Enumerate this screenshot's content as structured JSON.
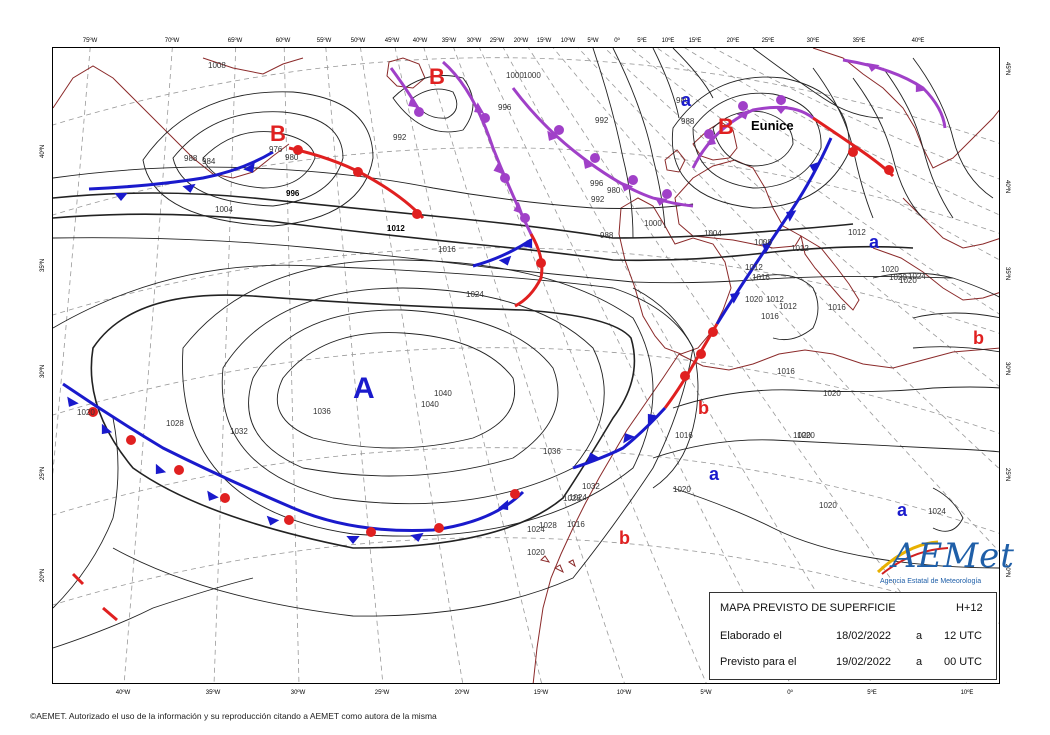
{
  "longitude_labels_top": [
    "75ºW",
    "70ºW",
    "65ºW",
    "60ºW",
    "55ºW",
    "50ºW",
    "45ºW",
    "40ºW",
    "35ºW",
    "30ºW",
    "25ºW",
    "20ºW",
    "15ºW",
    "10ºW",
    "5ºW",
    "0º",
    "5ºE",
    "10ºE",
    "15ºE",
    "20ºE",
    "25ºE",
    "30ºE",
    "35ºE",
    "40ºE"
  ],
  "longitude_labels_bottom": [
    "40ºW",
    "35ºW",
    "30ºW",
    "25ºW",
    "20ºW",
    "15ºW",
    "10ºW",
    "5ºW",
    "0º",
    "5ºE",
    "10ºE"
  ],
  "latitude_labels_left": [
    "40ºN",
    "35ºN",
    "30ºN",
    "25ºN",
    "20ºN"
  ],
  "latitude_labels_right": [
    "45ºN",
    "40ºN",
    "35ºN",
    "30ºN",
    "25ºN",
    "20ºN"
  ],
  "pressure_centers": [
    {
      "letter": "A",
      "color": "#1a1acc",
      "size": "big"
    },
    {
      "letter": "B",
      "color": "#e02020",
      "size": "big"
    },
    {
      "letter": "B",
      "color": "#e02020",
      "size": "big"
    },
    {
      "letter": "B",
      "color": "#e02020",
      "size": "big"
    },
    {
      "letter": "a",
      "color": "#1a1acc",
      "size": "small"
    },
    {
      "letter": "a",
      "color": "#1a1acc",
      "size": "small"
    },
    {
      "letter": "a",
      "color": "#1a1acc",
      "size": "small"
    },
    {
      "letter": "a",
      "color": "#1a1acc",
      "size": "small"
    },
    {
      "letter": "b",
      "color": "#e02020",
      "size": "small"
    },
    {
      "letter": "b",
      "color": "#e02020",
      "size": "small"
    },
    {
      "letter": "b",
      "color": "#e02020",
      "size": "small"
    }
  ],
  "storm_name": "Eunice",
  "isobar_labels": [
    "1008",
    "1000",
    "992",
    "988",
    "984",
    "976",
    "980",
    "996",
    "1004",
    "1012",
    "1016",
    "1024",
    "1020",
    "1028",
    "1032",
    "1036",
    "1040",
    "1040",
    "1036",
    "1032",
    "1028",
    "1024",
    "1020",
    "980",
    "988",
    "1000",
    "996",
    "992",
    "980",
    "988",
    "996",
    "992",
    "1000",
    "1004",
    "1008",
    "1012",
    "1016",
    "1020",
    "1012",
    "1012",
    "1016",
    "1012",
    "1020",
    "1020",
    "1016",
    "1016",
    "1020",
    "1020",
    "1020",
    "1020",
    "1020",
    "1024",
    "1024",
    "1016",
    "1020",
    "1024",
    "1028",
    "1012",
    "1016"
  ],
  "info_box": {
    "title": "MAPA PREVISTO DE SUPERFICIE",
    "horizon": "H+12",
    "issued_label": "Elaborado el",
    "issued_date": "18/02/2022",
    "issued_sep": "a",
    "issued_time": "12 UTC",
    "valid_label": "Previsto para el",
    "valid_date": "19/02/2022",
    "valid_sep": "a",
    "valid_time": "00 UTC"
  },
  "logo": {
    "name": "AEMet",
    "subtitle": "Agencia Estatal de Meteorología"
  },
  "copyright": "©AEMET. Autorizado el uso de la información y su reproducción citando a AEMET como autora de la misma",
  "colors": {
    "warm_front": "#e02020",
    "cold_front": "#1a1acc",
    "occluded_front": "#a040c8",
    "coastline": "#8b2a2a",
    "isobar": "#222222"
  }
}
